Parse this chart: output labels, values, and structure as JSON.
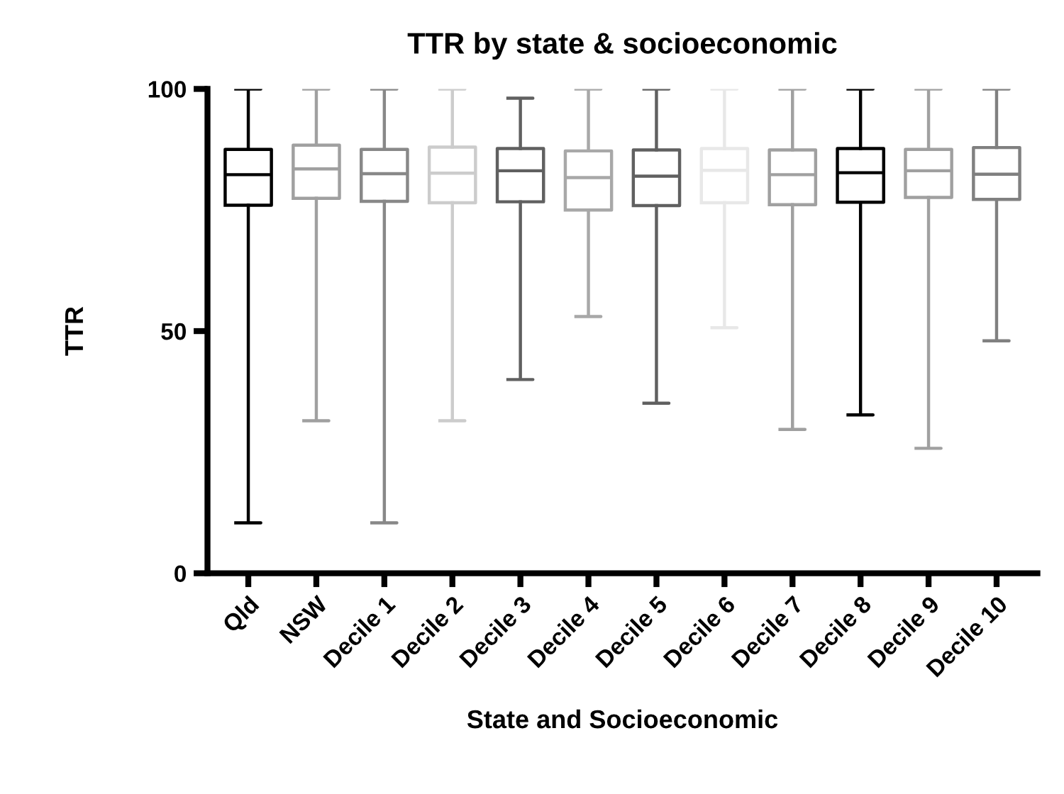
{
  "chart_data": {
    "type": "box",
    "title": "TTR by state & socioeconomic",
    "xlabel": "State and Socioeconomic",
    "ylabel": "TTR",
    "categories": [
      "Qld",
      "NSW",
      "Decile 1",
      "Decile 2",
      "Decile 3",
      "Decile 4",
      "Decile 5",
      "Decile 6",
      "Decile 7",
      "Decile 8",
      "Decile 9",
      "Decile 10"
    ],
    "colors": [
      "#000000",
      "#a0a0a0",
      "#888888",
      "#cccccc",
      "#606060",
      "#a8a8a8",
      "#606060",
      "#e8e8e8",
      "#a0a0a0",
      "#000000",
      "#a0a0a0",
      "#808080"
    ],
    "boxes": [
      {
        "low": 10.4,
        "q1": 76.0,
        "median": 82.3,
        "q3": 87.5,
        "high": 100
      },
      {
        "low": 31.5,
        "q1": 77.4,
        "median": 83.5,
        "q3": 88.4,
        "high": 100
      },
      {
        "low": 10.4,
        "q1": 76.8,
        "median": 82.5,
        "q3": 87.5,
        "high": 100
      },
      {
        "low": 31.5,
        "q1": 76.5,
        "median": 82.6,
        "q3": 88.0,
        "high": 100
      },
      {
        "low": 40.0,
        "q1": 76.7,
        "median": 83.1,
        "q3": 87.7,
        "high": 98.1
      },
      {
        "low": 53.0,
        "q1": 75.0,
        "median": 81.7,
        "q3": 87.2,
        "high": 100
      },
      {
        "low": 35.1,
        "q1": 75.9,
        "median": 82.0,
        "q3": 87.4,
        "high": 100
      },
      {
        "low": 50.7,
        "q1": 76.5,
        "median": 83.2,
        "q3": 87.7,
        "high": 100
      },
      {
        "low": 29.7,
        "q1": 76.1,
        "median": 82.3,
        "q3": 87.4,
        "high": 100
      },
      {
        "low": 32.7,
        "q1": 76.6,
        "median": 82.7,
        "q3": 87.7,
        "high": 100
      },
      {
        "low": 25.8,
        "q1": 77.6,
        "median": 83.1,
        "q3": 87.5,
        "high": 100
      },
      {
        "low": 48.0,
        "q1": 77.2,
        "median": 82.4,
        "q3": 87.9,
        "high": 100
      }
    ],
    "ylim": [
      0,
      100
    ],
    "yticks": [
      0,
      50,
      100
    ],
    "grid": false
  }
}
